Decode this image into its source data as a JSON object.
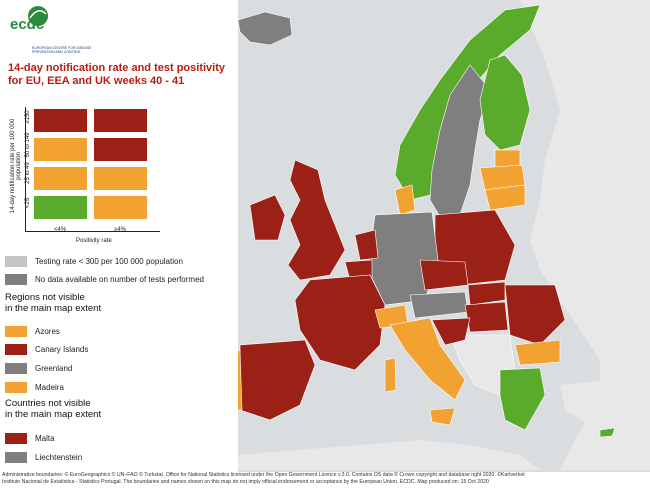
{
  "logo": {
    "text": "ecdc",
    "subtitle": "EUROPEAN CENTRE FOR DISEASE PREVENTION AND CONTROL"
  },
  "title": "14-day notification rate and test positivity for EU, EEA and UK weeks 40 - 41",
  "colors": {
    "green": "#5aaa2b",
    "orange": "#f2a230",
    "dark_red": "#9b2116",
    "light_grey": "#c4c4c4",
    "dark_grey": "#7f7f7f",
    "sea": "#d9dde0",
    "nonmember": "#e8e8e8"
  },
  "matrix": {
    "y_axis_label": "14-day notification rate per 100 000 population",
    "y_ticks": [
      "≥150",
      "50 to 149",
      "25 to 49",
      "<25"
    ],
    "x_axis_label": "Positivity rate",
    "x_ticks": [
      "<4%",
      "≥4%"
    ]
  },
  "legend": {
    "testing_rate": "Testing rate < 300 per 100 000 population",
    "no_data": "No data available on number of tests performed",
    "regions_heading_1": "Regions not visible",
    "regions_heading_2": "in the main map extent",
    "regions": [
      {
        "label": "Azores",
        "color": "#f2a230"
      },
      {
        "label": "Canary Islands",
        "color": "#9b2116"
      },
      {
        "label": "Greenland",
        "color": "#7f7f7f"
      },
      {
        "label": "Madeira",
        "color": "#f2a230"
      }
    ],
    "countries_heading_1": "Countries not visible",
    "countries_heading_2": "in the main map extent",
    "countries": [
      {
        "label": "Malta",
        "color": "#9b2116"
      },
      {
        "label": "Liechtenstein",
        "color": "#7f7f7f"
      }
    ]
  },
  "footer": {
    "line1": "Administrative boundaries: © EuroGeographics © UN–FAO © Turkstat. Office for National Statistics licensed under the Open Government Licence v.3.0. Contains OS data © Crown copyright and database right 2020. ©Kartverket",
    "line2": "Instituto Nacional de Estatística - Statistics Portugal. The boundaries and names shown on this map do not imply official endorsement or acceptance by the European Union. ECDC. Map produced on: 15 Oct 2020"
  }
}
